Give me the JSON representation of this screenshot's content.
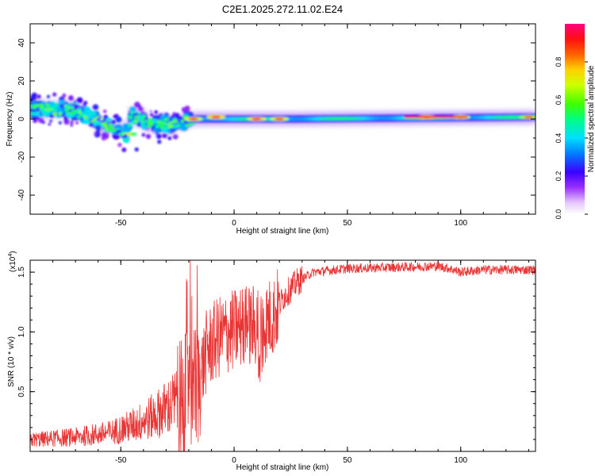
{
  "title": "C2E1.2025.272.11.02.E24",
  "chart_data": [
    {
      "type": "heatmap",
      "name": "spectrogram",
      "xlabel": "Height of straight line (km)",
      "ylabel": "Frequency (Hz)",
      "xlim": [
        -90,
        133
      ],
      "ylim": [
        -50,
        50
      ],
      "xticks": [
        -50,
        0,
        50,
        100
      ],
      "xtick_labels": [
        "-50",
        "0",
        "50",
        "100"
      ],
      "yticks": [
        -40,
        -20,
        0,
        20,
        40
      ],
      "ytick_labels": [
        "-40",
        "-20",
        "0",
        "20",
        "40"
      ],
      "colorbar": {
        "label": "Normalized spectral amplitude",
        "range": [
          0,
          1
        ],
        "ticks": [
          0.0,
          0.2,
          0.4,
          0.6,
          0.8
        ],
        "tick_labels": [
          "0.0",
          "0.2",
          "0.4",
          "0.6",
          "0.8"
        ]
      },
      "ridge": [
        {
          "x": -88,
          "y": 5
        },
        {
          "x": -75,
          "y": 5
        },
        {
          "x": -65,
          "y": 2
        },
        {
          "x": -55,
          "y": -4
        },
        {
          "x": -48,
          "y": -9
        },
        {
          "x": -45,
          "y": 2
        },
        {
          "x": -35,
          "y": -3
        },
        {
          "x": -25,
          "y": -2
        },
        {
          "x": -18,
          "y": 0
        },
        {
          "x": 0,
          "y": 0
        },
        {
          "x": 25,
          "y": 0
        },
        {
          "x": 133,
          "y": 1
        }
      ],
      "hotspots": [
        {
          "x": -82,
          "y": 5,
          "a": 0.6
        },
        {
          "x": -47,
          "y": -8,
          "a": 0.7
        },
        {
          "x": -18,
          "y": 0,
          "a": 0.9
        },
        {
          "x": -8,
          "y": 1,
          "a": 0.95
        },
        {
          "x": 10,
          "y": 0,
          "a": 0.95
        },
        {
          "x": 20,
          "y": 0,
          "a": 0.9
        },
        {
          "x": 85,
          "y": 1,
          "a": 1.0
        },
        {
          "x": 100,
          "y": 1,
          "a": 0.9
        },
        {
          "x": 130,
          "y": 1,
          "a": 0.85
        }
      ]
    },
    {
      "type": "line",
      "name": "snr",
      "xlabel": "Height of straight line (km)",
      "ylabel": "SNR (10 * v/v)",
      "y_scale_label": "(x10",
      "y_scale_exp": "4",
      "y_scale_close": ")",
      "xlim": [
        -90,
        133
      ],
      "ylim": [
        0,
        1.6
      ],
      "xticks": [
        -50,
        0,
        50,
        100
      ],
      "xtick_labels": [
        "-50",
        "0",
        "50",
        "100"
      ],
      "yticks": [
        0.5,
        1.0,
        1.5
      ],
      "ytick_labels": [
        "0.5",
        "1.0",
        "1.5"
      ],
      "line_color": "#e83535",
      "series_envelope": [
        {
          "x": -90,
          "y": 0.08
        },
        {
          "x": -70,
          "y": 0.1
        },
        {
          "x": -55,
          "y": 0.13
        },
        {
          "x": -45,
          "y": 0.18
        },
        {
          "x": -35,
          "y": 0.25
        },
        {
          "x": -28,
          "y": 0.32
        },
        {
          "x": -22,
          "y": 0.4
        },
        {
          "x": -19,
          "y": 0.55
        },
        {
          "x": -16,
          "y": 0.55
        },
        {
          "x": -12,
          "y": 0.85
        },
        {
          "x": -7,
          "y": 0.95
        },
        {
          "x": -2,
          "y": 1.0
        },
        {
          "x": 5,
          "y": 1.05
        },
        {
          "x": 12,
          "y": 1.05
        },
        {
          "x": 18,
          "y": 1.15
        },
        {
          "x": 22,
          "y": 1.3
        },
        {
          "x": 28,
          "y": 1.42
        },
        {
          "x": 35,
          "y": 1.5
        },
        {
          "x": 50,
          "y": 1.53
        },
        {
          "x": 90,
          "y": 1.55
        },
        {
          "x": 95,
          "y": 1.53
        },
        {
          "x": 100,
          "y": 1.5
        },
        {
          "x": 110,
          "y": 1.52
        },
        {
          "x": 133,
          "y": 1.52
        }
      ]
    }
  ]
}
